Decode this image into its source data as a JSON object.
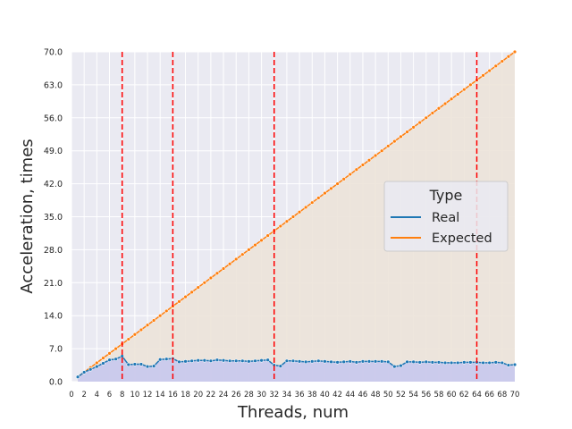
{
  "chart_data": {
    "type": "line",
    "xlabel": "Threads, num",
    "ylabel": "Acceleration, times",
    "xlim": [
      0,
      70
    ],
    "ylim": [
      0,
      70
    ],
    "xticks": [
      "0",
      "2",
      "4",
      "6",
      "8",
      "10",
      "12",
      "14",
      "16",
      "18",
      "20",
      "22",
      "24",
      "26",
      "28",
      "30",
      "32",
      "34",
      "36",
      "38",
      "40",
      "42",
      "44",
      "46",
      "48",
      "50",
      "52",
      "54",
      "56",
      "58",
      "60",
      "62",
      "64",
      "66",
      "68",
      "70"
    ],
    "yticks": [
      "0.0",
      "7.0",
      "14.0",
      "21.0",
      "28.0",
      "35.0",
      "42.0",
      "49.0",
      "56.0",
      "63.0",
      "70.0"
    ],
    "grid": true,
    "legend": {
      "title": "Type",
      "placement": "center-right"
    },
    "vlines": [
      8,
      16,
      32,
      64
    ],
    "colors": {
      "real": "#1f77b4",
      "expected": "#ff7f0e",
      "vline": "#ff0000",
      "real_fill": "#c9c9ec",
      "expected_fill": "#ece3d9"
    },
    "series": [
      {
        "name": "Real",
        "x": [
          1,
          2,
          3,
          4,
          5,
          6,
          7,
          8,
          9,
          10,
          11,
          12,
          13,
          14,
          15,
          16,
          17,
          18,
          19,
          20,
          21,
          22,
          23,
          24,
          25,
          26,
          27,
          28,
          29,
          30,
          31,
          32,
          33,
          34,
          35,
          36,
          37,
          38,
          39,
          40,
          41,
          42,
          43,
          44,
          45,
          46,
          47,
          48,
          49,
          50,
          51,
          52,
          53,
          54,
          55,
          56,
          57,
          58,
          59,
          60,
          61,
          62,
          63,
          64,
          65,
          66,
          67,
          68,
          69,
          70
        ],
        "y": [
          1.0,
          2.0,
          2.6,
          3.2,
          3.9,
          4.6,
          4.8,
          5.4,
          3.6,
          3.7,
          3.7,
          3.2,
          3.3,
          4.7,
          4.8,
          4.9,
          4.2,
          4.3,
          4.4,
          4.5,
          4.5,
          4.4,
          4.6,
          4.5,
          4.4,
          4.4,
          4.4,
          4.3,
          4.4,
          4.5,
          4.6,
          3.5,
          3.3,
          4.4,
          4.4,
          4.3,
          4.2,
          4.3,
          4.4,
          4.3,
          4.2,
          4.1,
          4.2,
          4.3,
          4.1,
          4.3,
          4.3,
          4.3,
          4.3,
          4.2,
          3.2,
          3.4,
          4.2,
          4.2,
          4.1,
          4.2,
          4.1,
          4.1,
          4.0,
          4.0,
          4.0,
          4.1,
          4.1,
          4.1,
          4.0,
          4.0,
          4.1,
          4.0,
          3.5,
          3.6
        ]
      },
      {
        "name": "Expected",
        "x": [
          1,
          2,
          3,
          4,
          5,
          6,
          7,
          8,
          9,
          10,
          11,
          12,
          13,
          14,
          15,
          16,
          17,
          18,
          19,
          20,
          21,
          22,
          23,
          24,
          25,
          26,
          27,
          28,
          29,
          30,
          31,
          32,
          33,
          34,
          35,
          36,
          37,
          38,
          39,
          40,
          41,
          42,
          43,
          44,
          45,
          46,
          47,
          48,
          49,
          50,
          51,
          52,
          53,
          54,
          55,
          56,
          57,
          58,
          59,
          60,
          61,
          62,
          63,
          64,
          65,
          66,
          67,
          68,
          69,
          70
        ],
        "y": [
          1,
          2,
          3,
          4,
          5,
          6,
          7,
          8,
          9,
          10,
          11,
          12,
          13,
          14,
          15,
          16,
          17,
          18,
          19,
          20,
          21,
          22,
          23,
          24,
          25,
          26,
          27,
          28,
          29,
          30,
          31,
          32,
          33,
          34,
          35,
          36,
          37,
          38,
          39,
          40,
          41,
          42,
          43,
          44,
          45,
          46,
          47,
          48,
          49,
          50,
          51,
          52,
          53,
          54,
          55,
          56,
          57,
          58,
          59,
          60,
          61,
          62,
          63,
          64,
          65,
          66,
          67,
          68,
          69,
          70
        ]
      }
    ]
  }
}
